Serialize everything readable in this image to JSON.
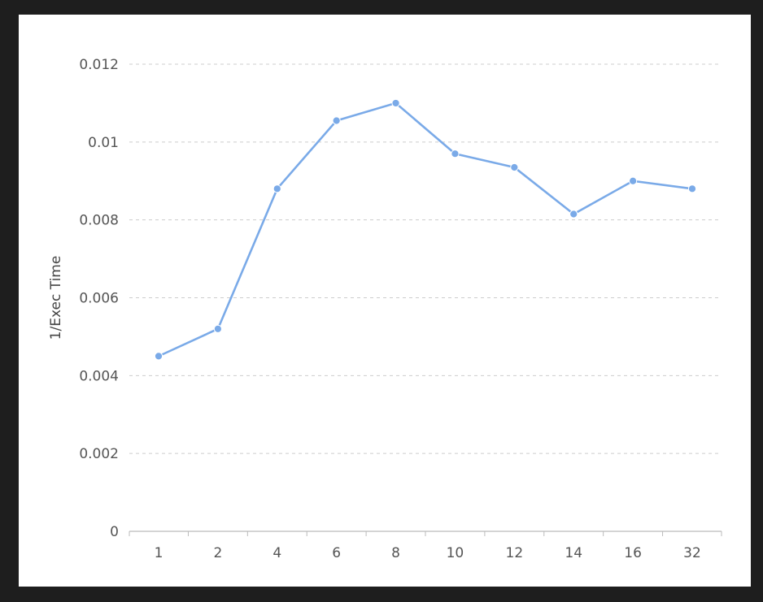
{
  "chart_data": {
    "type": "line",
    "title": "",
    "xlabel": "",
    "ylabel": "1/Exec Time",
    "categories": [
      "1",
      "2",
      "4",
      "6",
      "8",
      "10",
      "12",
      "14",
      "16",
      "32"
    ],
    "series": [
      {
        "color": "#7aaae8",
        "values": [
          0.0045,
          0.0052,
          0.0088,
          0.01055,
          0.011,
          0.0097,
          0.00935,
          0.00815,
          0.009,
          0.0088
        ]
      }
    ],
    "ylim": [
      0,
      0.012
    ],
    "yticks": [
      {
        "value": 0,
        "label": "0"
      },
      {
        "value": 0.002,
        "label": "0.002"
      },
      {
        "value": 0.004,
        "label": "0.004"
      },
      {
        "value": 0.006,
        "label": "0.006"
      },
      {
        "value": 0.008,
        "label": "0.008"
      },
      {
        "value": 0.01,
        "label": "0.01"
      },
      {
        "value": 0.012,
        "label": "0.012"
      }
    ],
    "grid": true,
    "legend": "none"
  }
}
